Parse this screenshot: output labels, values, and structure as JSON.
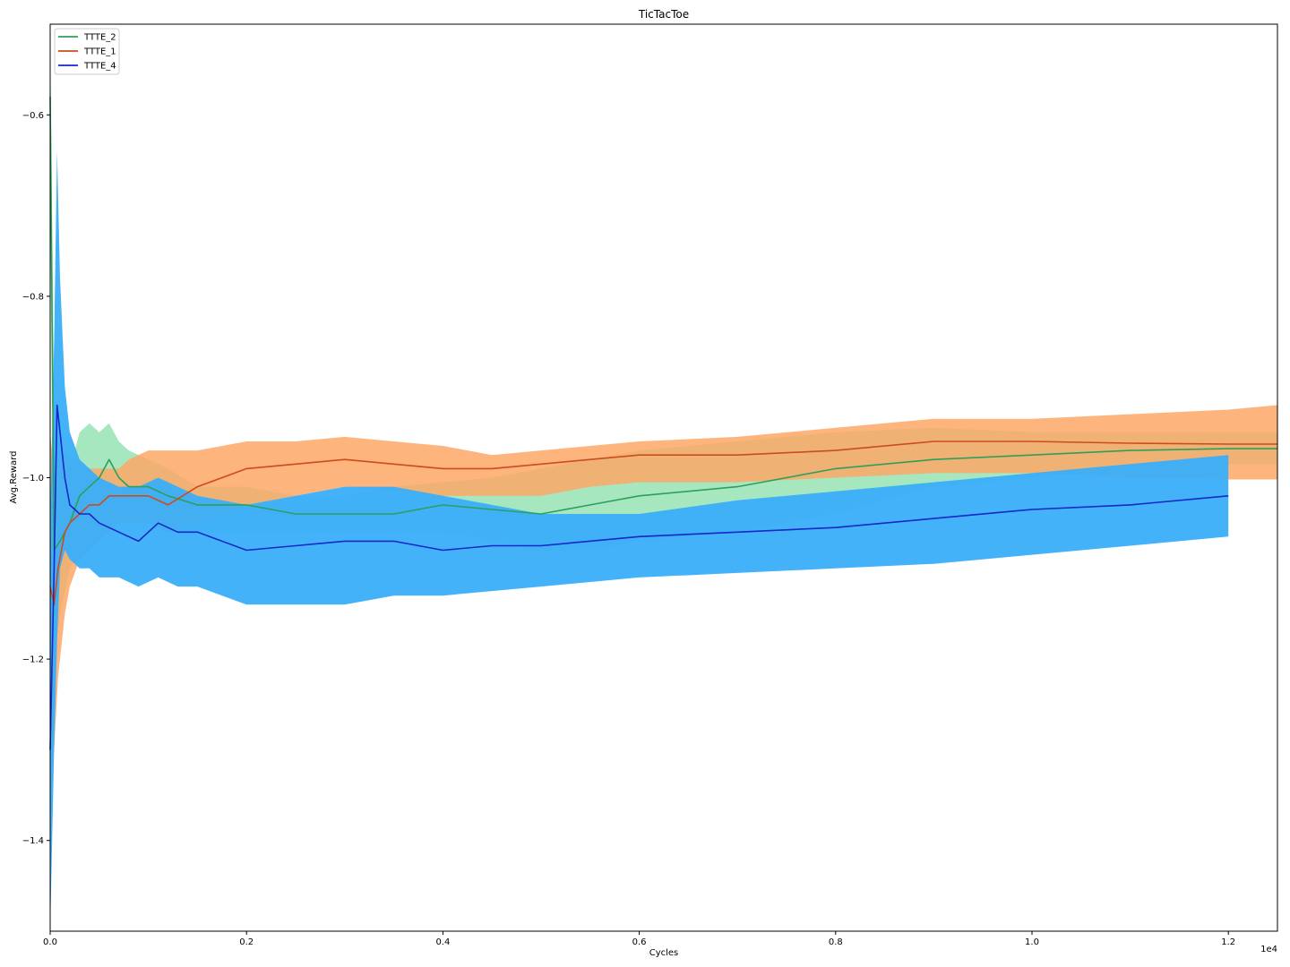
{
  "chart_data": {
    "type": "line",
    "title": "TicTacToe",
    "xlabel": "Cycles",
    "ylabel": "Avg.Reward",
    "x_offset_label": "1e4",
    "xlim": [
      0,
      12500
    ],
    "ylim": [
      -1.5,
      -0.5
    ],
    "x_ticks": [
      {
        "value": 0,
        "label": "0.0"
      },
      {
        "value": 2000,
        "label": "0.2"
      },
      {
        "value": 4000,
        "label": "0.4"
      },
      {
        "value": 6000,
        "label": "0.6"
      },
      {
        "value": 8000,
        "label": "0.8"
      },
      {
        "value": 10000,
        "label": "1.0"
      },
      {
        "value": 12000,
        "label": "1.2"
      }
    ],
    "y_ticks": [
      {
        "value": -1.4,
        "label": "−1.4"
      },
      {
        "value": -1.2,
        "label": "−1.2"
      },
      {
        "value": -1.0,
        "label": "−1.0"
      },
      {
        "value": -0.8,
        "label": "−0.8"
      },
      {
        "value": -0.6,
        "label": "−0.6"
      }
    ],
    "grid": false,
    "legend_position": "top-left",
    "series": [
      {
        "name": "TTTE_2",
        "color": "#2ca05a",
        "band_color": "#98e3b5",
        "x": [
          0,
          40,
          100,
          200,
          300,
          400,
          500,
          600,
          700,
          800,
          1000,
          1200,
          1500,
          2000,
          2500,
          3000,
          3500,
          4000,
          4500,
          5000,
          5500,
          6000,
          7000,
          8000,
          9000,
          10000,
          11000,
          12000,
          12500
        ],
        "mean": [
          -0.58,
          -1.08,
          -1.07,
          -1.05,
          -1.02,
          -1.01,
          -1.0,
          -0.98,
          -1.0,
          -1.01,
          -1.01,
          -1.02,
          -1.03,
          -1.03,
          -1.04,
          -1.04,
          -1.04,
          -1.03,
          -1.035,
          -1.04,
          -1.03,
          -1.02,
          -1.01,
          -0.99,
          -0.98,
          -0.975,
          -0.97,
          -0.968,
          -0.968
        ],
        "upper": [
          -0.52,
          -0.9,
          -0.97,
          -0.99,
          -0.95,
          -0.94,
          -0.95,
          -0.94,
          -0.96,
          -0.97,
          -0.98,
          -0.99,
          -1.01,
          -1.01,
          -1.02,
          -1.02,
          -1.01,
          -1.005,
          -1.0,
          -0.99,
          -0.98,
          -0.97,
          -0.96,
          -0.95,
          -0.945,
          -0.95,
          -0.95,
          -0.95,
          -0.95
        ],
        "lower": [
          -0.7,
          -1.2,
          -1.15,
          -1.1,
          -1.08,
          -1.07,
          -1.06,
          -1.05,
          -1.05,
          -1.05,
          -1.05,
          -1.06,
          -1.06,
          -1.06,
          -1.06,
          -1.06,
          -1.06,
          -1.06,
          -1.07,
          -1.08,
          -1.08,
          -1.07,
          -1.06,
          -1.04,
          -1.01,
          -1.0,
          -0.99,
          -0.985,
          -0.985
        ]
      },
      {
        "name": "TTTE_1",
        "color": "#cc4c1c",
        "band_color": "#fda766",
        "x": [
          0,
          40,
          80,
          150,
          200,
          300,
          400,
          500,
          600,
          700,
          800,
          1000,
          1200,
          1500,
          2000,
          2500,
          3000,
          3500,
          4000,
          4500,
          5000,
          5500,
          6000,
          7000,
          8000,
          9000,
          10000,
          11000,
          12000,
          12500
        ],
        "mean": [
          -1.12,
          -1.14,
          -1.1,
          -1.06,
          -1.05,
          -1.04,
          -1.03,
          -1.03,
          -1.02,
          -1.02,
          -1.02,
          -1.02,
          -1.03,
          -1.01,
          -0.99,
          -0.985,
          -0.98,
          -0.985,
          -0.99,
          -0.99,
          -0.985,
          -0.98,
          -0.975,
          -0.975,
          -0.97,
          -0.96,
          -0.96,
          -0.962,
          -0.963,
          -0.963
        ],
        "upper": [
          -0.95,
          -1.0,
          -0.98,
          -0.97,
          -0.98,
          -0.99,
          -0.99,
          -0.99,
          -0.99,
          -0.99,
          -0.98,
          -0.97,
          -0.97,
          -0.97,
          -0.96,
          -0.96,
          -0.955,
          -0.96,
          -0.965,
          -0.975,
          -0.97,
          -0.965,
          -0.96,
          -0.955,
          -0.945,
          -0.935,
          -0.935,
          -0.93,
          -0.925,
          -0.92
        ],
        "lower": [
          -1.35,
          -1.3,
          -1.22,
          -1.15,
          -1.12,
          -1.09,
          -1.08,
          -1.07,
          -1.06,
          -1.05,
          -1.05,
          -1.05,
          -1.06,
          -1.05,
          -1.03,
          -1.02,
          -1.01,
          -1.015,
          -1.02,
          -1.02,
          -1.02,
          -1.01,
          -1.005,
          -1.005,
          -1.0,
          -0.995,
          -0.995,
          -1.0,
          -1.002,
          -1.002
        ]
      },
      {
        "name": "TTTE_4",
        "color": "#1428c8",
        "band_color": "#3aaef9",
        "x": [
          0,
          40,
          70,
          100,
          150,
          200,
          300,
          400,
          500,
          700,
          900,
          1100,
          1300,
          1500,
          2000,
          2500,
          3000,
          3500,
          4000,
          4500,
          5000,
          6000,
          7000,
          8000,
          9000,
          10000,
          11000,
          12000
        ],
        "mean": [
          -1.3,
          -1.1,
          -0.92,
          -0.95,
          -1.0,
          -1.03,
          -1.04,
          -1.04,
          -1.05,
          -1.06,
          -1.07,
          -1.05,
          -1.06,
          -1.06,
          -1.08,
          -1.075,
          -1.07,
          -1.07,
          -1.08,
          -1.075,
          -1.075,
          -1.065,
          -1.06,
          -1.055,
          -1.045,
          -1.035,
          -1.03,
          -1.02
        ],
        "upper": [
          -1.05,
          -0.85,
          -0.64,
          -0.78,
          -0.9,
          -0.95,
          -0.98,
          -0.99,
          -1.0,
          -1.01,
          -1.01,
          -1.0,
          -1.01,
          -1.02,
          -1.03,
          -1.02,
          -1.01,
          -1.01,
          -1.02,
          -1.03,
          -1.04,
          -1.04,
          -1.025,
          -1.015,
          -1.005,
          -0.995,
          -0.985,
          -0.975
        ],
        "lower": [
          -1.5,
          -1.3,
          -1.18,
          -1.1,
          -1.08,
          -1.09,
          -1.1,
          -1.1,
          -1.11,
          -1.11,
          -1.12,
          -1.11,
          -1.12,
          -1.12,
          -1.14,
          -1.14,
          -1.14,
          -1.13,
          -1.13,
          -1.125,
          -1.12,
          -1.11,
          -1.105,
          -1.1,
          -1.095,
          -1.085,
          -1.075,
          -1.065
        ]
      }
    ]
  }
}
